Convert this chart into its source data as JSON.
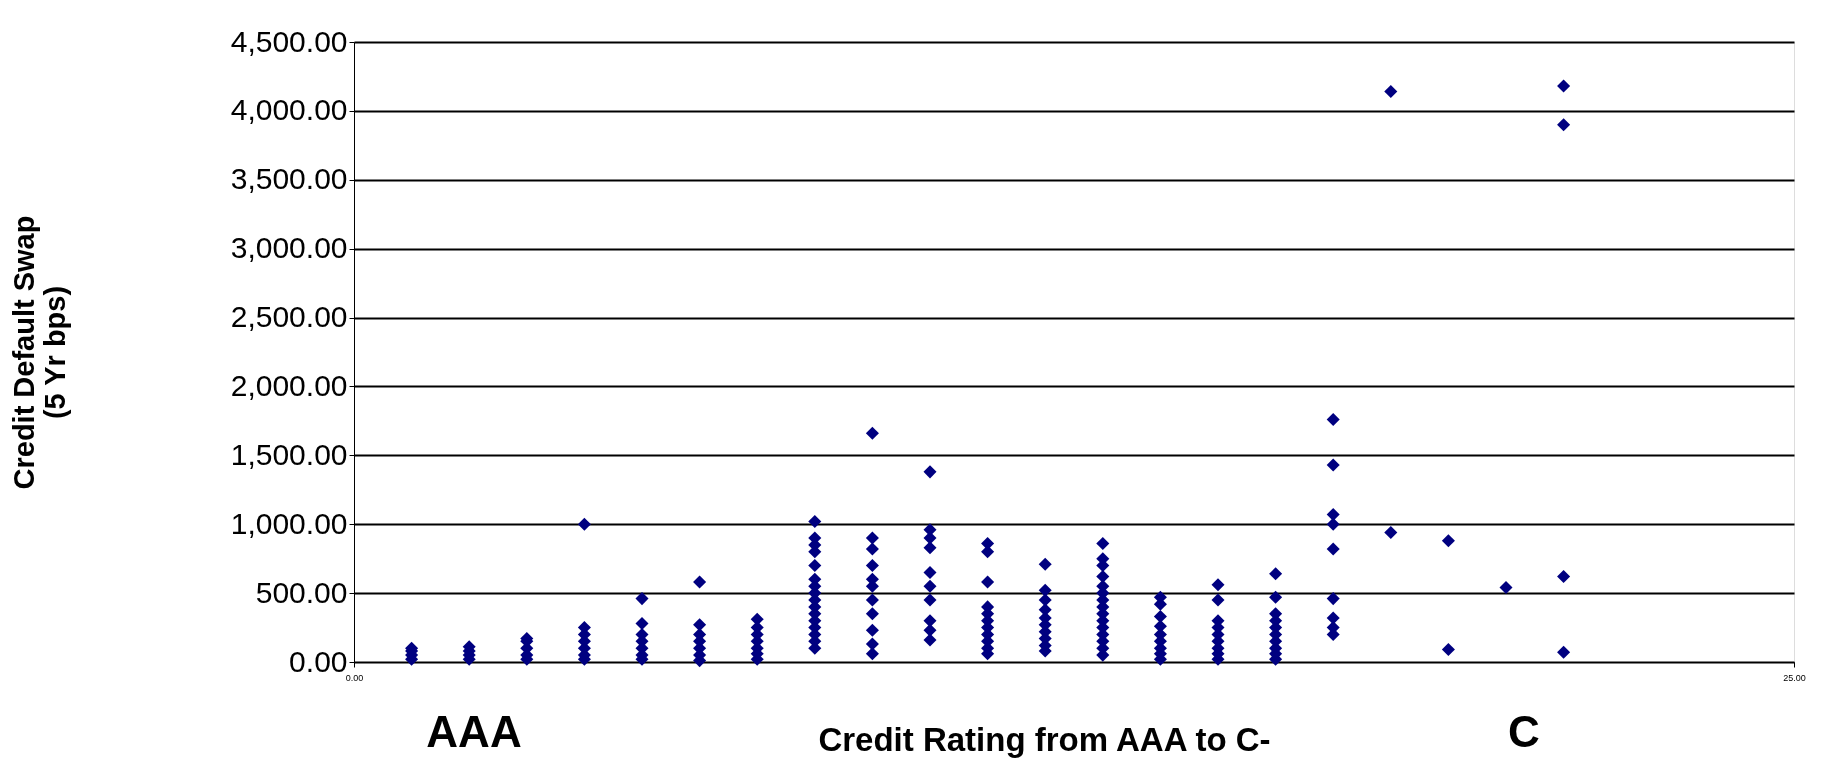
{
  "chart_data": {
    "type": "scatter",
    "xlabel": "Credit Rating from AAA   to C-",
    "ylabel": [
      "Credit Default Swap",
      "(5 Yr bps)"
    ],
    "annotations": [
      "AAA",
      "C"
    ],
    "xlim": [
      0,
      25
    ],
    "xticks": [
      {
        "value": 0,
        "label": "0.00"
      },
      {
        "value": 25,
        "label": "25.00"
      }
    ],
    "ylim": [
      0,
      4500
    ],
    "yticks": [
      {
        "value": 0,
        "label": "0.00"
      },
      {
        "value": 500,
        "label": "500.00"
      },
      {
        "value": 1000,
        "label": "1,000.00"
      },
      {
        "value": 1500,
        "label": "1,500.00"
      },
      {
        "value": 2000,
        "label": "2,000.00"
      },
      {
        "value": 2500,
        "label": "2,500.00"
      },
      {
        "value": 3000,
        "label": "3,000.00"
      },
      {
        "value": 3500,
        "label": "3,500.00"
      },
      {
        "value": 4000,
        "label": "4,000.00"
      },
      {
        "value": 4500,
        "label": "4,500.00"
      }
    ],
    "grid": "y",
    "marker": "diamond",
    "legend": false,
    "series": [
      {
        "color": "#000080",
        "x": [
          1,
          1,
          1,
          1,
          2,
          2,
          2,
          2,
          3,
          3,
          3,
          3,
          3,
          4,
          4,
          4,
          4,
          4,
          4,
          4,
          5,
          5,
          5,
          5,
          5,
          5,
          5,
          6,
          6,
          6,
          6,
          6,
          6,
          6,
          7,
          7,
          7,
          7,
          7,
          7,
          7,
          8,
          8,
          8,
          8,
          8,
          8,
          8,
          8,
          8,
          8,
          8,
          8,
          8,
          8,
          8,
          8,
          9,
          9,
          9,
          9,
          9,
          9,
          9,
          9,
          9,
          9,
          9,
          10,
          10,
          10,
          10,
          10,
          10,
          10,
          10,
          10,
          10,
          11,
          11,
          11,
          11,
          11,
          11,
          11,
          11,
          11,
          11,
          11,
          12,
          12,
          12,
          12,
          12,
          12,
          12,
          12,
          12,
          12,
          13,
          13,
          13,
          13,
          13,
          13,
          13,
          13,
          13,
          13,
          13,
          13,
          13,
          13,
          13,
          14,
          14,
          14,
          14,
          14,
          14,
          14,
          14,
          14,
          15,
          15,
          15,
          15,
          15,
          15,
          15,
          15,
          15,
          16,
          16,
          16,
          16,
          16,
          16,
          16,
          16,
          16,
          16,
          17,
          17,
          17,
          17,
          17,
          17,
          17,
          17,
          17,
          18,
          18,
          19,
          19,
          20,
          21,
          21,
          21,
          21
        ],
        "values": [
          20,
          50,
          80,
          100,
          20,
          50,
          80,
          110,
          20,
          50,
          100,
          150,
          170,
          20,
          50,
          100,
          150,
          200,
          250,
          1000,
          20,
          50,
          100,
          150,
          200,
          280,
          460,
          10,
          50,
          100,
          150,
          200,
          270,
          580,
          20,
          60,
          100,
          150,
          200,
          250,
          310,
          100,
          150,
          200,
          250,
          300,
          350,
          400,
          450,
          500,
          550,
          600,
          700,
          800,
          850,
          900,
          1020,
          60,
          130,
          230,
          350,
          450,
          550,
          600,
          700,
          820,
          900,
          1660,
          160,
          230,
          300,
          450,
          550,
          650,
          830,
          900,
          960,
          1380,
          60,
          100,
          150,
          200,
          250,
          300,
          350,
          400,
          580,
          800,
          860,
          80,
          120,
          170,
          220,
          270,
          320,
          380,
          450,
          520,
          710,
          50,
          100,
          150,
          200,
          250,
          300,
          350,
          400,
          450,
          500,
          550,
          620,
          700,
          750,
          860,
          20,
          60,
          100,
          150,
          200,
          260,
          330,
          420,
          470,
          20,
          60,
          100,
          150,
          200,
          250,
          300,
          450,
          560,
          20,
          60,
          100,
          150,
          200,
          250,
          300,
          350,
          470,
          640,
          200,
          250,
          320,
          460,
          820,
          1000,
          1070,
          1430,
          1760,
          940,
          4140,
          90,
          880,
          540,
          70,
          620,
          3900,
          4180
        ]
      }
    ]
  }
}
